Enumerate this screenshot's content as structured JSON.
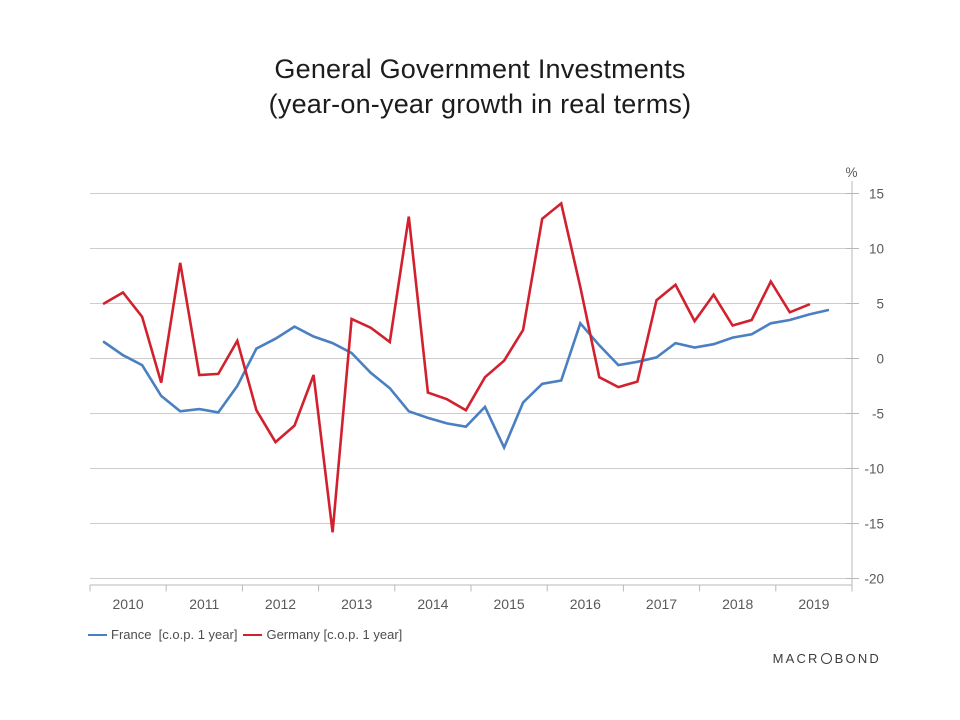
{
  "title": {
    "line1": "General Government Investments",
    "line2": "(year-on-year growth in real terms)"
  },
  "chart_data": {
    "type": "line",
    "title": "General Government Investments (year-on-year growth in real terms)",
    "unit_label": "%",
    "frequency": "quarterly",
    "x_start": "2010 Q1",
    "x_tick_years": [
      "2010",
      "2011",
      "2012",
      "2013",
      "2014",
      "2015",
      "2016",
      "2017",
      "2018",
      "2019"
    ],
    "ylim": [
      -20,
      15
    ],
    "yticks": [
      15,
      10,
      5,
      0,
      -5,
      -10,
      -15,
      -20
    ],
    "ytick_labels": [
      "15",
      "10",
      "5",
      "0",
      "-5",
      "-10",
      "-15",
      "-20"
    ],
    "grid": "horizontal",
    "legend_position": "bottom-left",
    "series": [
      {
        "name": "France",
        "legend_label": "France  [c.o.p. 1 year]",
        "color": "#4A7FC1",
        "values": [
          1.5,
          0.3,
          -0.6,
          -3.4,
          -4.8,
          -4.6,
          -4.9,
          -2.5,
          0.9,
          1.8,
          2.9,
          2.0,
          1.4,
          0.5,
          -1.3,
          -2.7,
          -4.8,
          -5.4,
          -5.9,
          -6.2,
          -4.4,
          -8.1,
          -4.0,
          -2.3,
          -2.0,
          3.2,
          1.2,
          -0.6,
          -0.3,
          0.1,
          1.4,
          1.0,
          1.3,
          1.9,
          2.2,
          3.2,
          3.5,
          4.0,
          4.4
        ]
      },
      {
        "name": "Germany",
        "legend_label": "Germany [c.o.p. 1 year]",
        "color": "#D2212E",
        "values": [
          5.0,
          6.0,
          3.8,
          -2.2,
          8.7,
          -1.5,
          -1.4,
          1.6,
          -4.7,
          -7.6,
          -6.1,
          -1.5,
          -15.8,
          3.6,
          2.8,
          1.5,
          12.9,
          -3.1,
          -3.7,
          -4.7,
          -1.7,
          -0.2,
          2.6,
          12.7,
          14.1,
          6.5,
          -1.7,
          -2.6,
          -2.1,
          5.3,
          6.7,
          3.4,
          5.8,
          3.0,
          3.5,
          7.0,
          4.2,
          4.9
        ]
      }
    ]
  },
  "branding": {
    "logo_prefix": "MACR",
    "logo_suffix": "BOND"
  },
  "colors": {
    "background": "#FFFFFF",
    "gridline": "#CDCDCD",
    "axis": "#B8B8B8",
    "tick_label": "#595959",
    "title_text": "#1C1C1C",
    "legend_text": "#4D4D4D",
    "france_line": "#4A7FC1",
    "germany_line": "#D2212E"
  }
}
